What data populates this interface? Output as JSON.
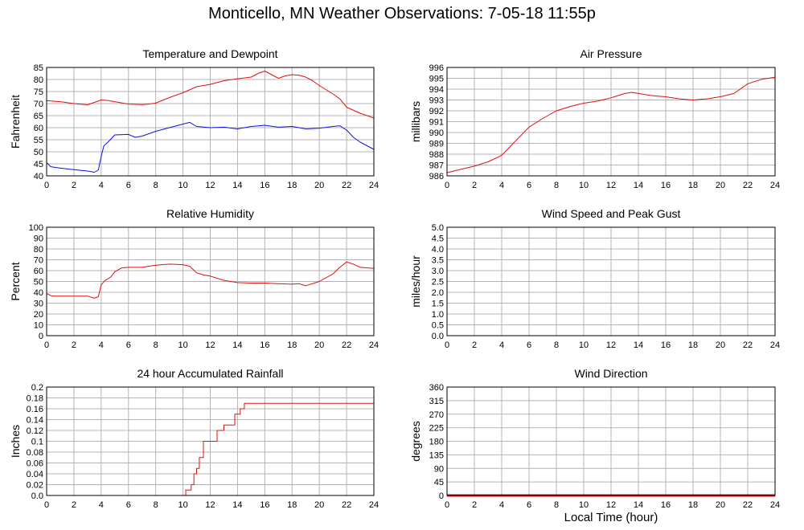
{
  "page": {
    "title": "Monticello, MN Weather Observations: 7-05-18 11:55p",
    "footer_xlabel": "Local Time (hour)"
  },
  "colors": {
    "red": "#e01010",
    "blue": "#1010e0",
    "grid": "#b4b4b4",
    "frame": "#000000"
  },
  "chart_data": [
    {
      "id": "temp",
      "type": "line",
      "title": "Temperature and Dewpoint",
      "ylabel": "Fahrenheit",
      "xlabel": "",
      "xlim": [
        0,
        24
      ],
      "ylim": [
        40,
        85
      ],
      "xticks": [
        "0",
        "2",
        "4",
        "6",
        "8",
        "10",
        "12",
        "14",
        "16",
        "18",
        "20",
        "22",
        "24"
      ],
      "yticks": [
        "40",
        "45",
        "50",
        "55",
        "60",
        "65",
        "70",
        "75",
        "80",
        "85"
      ],
      "grid": true,
      "series": [
        {
          "color": "#e01010",
          "x": [
            0,
            0.5,
            1,
            2,
            3,
            3.5,
            4,
            4.5,
            5,
            6,
            7,
            7.5,
            8,
            9,
            10,
            11,
            12,
            13,
            14,
            15,
            15.5,
            16,
            16.5,
            17,
            17.5,
            18,
            18.5,
            19,
            19.5,
            20,
            21,
            21.5,
            22,
            23,
            24
          ],
          "y": [
            71.2,
            71,
            70.8,
            70,
            69.5,
            70.5,
            71.5,
            71.3,
            70.8,
            69.8,
            69.6,
            69.8,
            70.2,
            72.5,
            74.5,
            77,
            78,
            79.5,
            80.3,
            81,
            82.5,
            83.5,
            82,
            80.5,
            81.5,
            82,
            81.8,
            81,
            79.5,
            77.5,
            74,
            72,
            68.5,
            66,
            64
          ]
        },
        {
          "color": "#1010e0",
          "x": [
            0,
            0.3,
            1,
            2,
            3,
            3.5,
            3.8,
            4,
            4.2,
            4.5,
            5,
            6,
            6.5,
            7,
            7.5,
            8,
            9,
            10,
            10.5,
            11,
            12,
            13,
            14,
            15,
            16,
            17,
            18,
            19,
            20,
            21,
            21.5,
            22,
            22.5,
            23,
            24
          ],
          "y": [
            45.5,
            43.8,
            43.2,
            42.6,
            42,
            41.5,
            42.5,
            48,
            52.5,
            54,
            57,
            57.2,
            56,
            56.5,
            57.5,
            58.5,
            60,
            61.5,
            62.2,
            60.5,
            60,
            60.2,
            59.5,
            60.5,
            61,
            60.2,
            60.5,
            59.5,
            59.8,
            60.5,
            60.8,
            59,
            56,
            54,
            51
          ]
        }
      ]
    },
    {
      "id": "pressure",
      "type": "line",
      "title": "Air Pressure",
      "ylabel": "millibars",
      "xlabel": "",
      "xlim": [
        0,
        24
      ],
      "ylim": [
        986,
        996
      ],
      "xticks": [
        "0",
        "2",
        "4",
        "6",
        "8",
        "10",
        "12",
        "14",
        "16",
        "18",
        "20",
        "22",
        "24"
      ],
      "yticks": [
        "986",
        "987",
        "988",
        "989",
        "990",
        "991",
        "992",
        "993",
        "994",
        "995",
        "996"
      ],
      "grid": true,
      "series": [
        {
          "color": "#e01010",
          "x": [
            0,
            1,
            2,
            3,
            4,
            5,
            6,
            7,
            8,
            9,
            10,
            11,
            12,
            13,
            13.5,
            14,
            15,
            16,
            17,
            18,
            19,
            20,
            21,
            22,
            23,
            24
          ],
          "y": [
            986.3,
            986.6,
            986.9,
            987.3,
            987.9,
            989.2,
            990.5,
            991.3,
            992,
            992.4,
            992.7,
            992.9,
            993.2,
            993.6,
            993.7,
            993.6,
            993.4,
            993.3,
            993.1,
            993,
            993.1,
            993.3,
            993.6,
            994.5,
            994.9,
            995.1
          ]
        }
      ]
    },
    {
      "id": "humidity",
      "type": "line",
      "title": "Relative Humidity",
      "ylabel": "Percent",
      "xlabel": "",
      "xlim": [
        0,
        24
      ],
      "ylim": [
        0,
        100
      ],
      "xticks": [
        "0",
        "2",
        "4",
        "6",
        "8",
        "10",
        "12",
        "14",
        "16",
        "18",
        "20",
        "22",
        "24"
      ],
      "yticks": [
        "0",
        "10",
        "20",
        "30",
        "40",
        "50",
        "60",
        "70",
        "80",
        "90",
        "100"
      ],
      "grid": true,
      "series": [
        {
          "color": "#e01010",
          "x": [
            0,
            0.3,
            0.5,
            1,
            2,
            3,
            3.5,
            3.8,
            4,
            4.3,
            4.7,
            5,
            5.5,
            6,
            7,
            8,
            9,
            10,
            10.5,
            11,
            11.5,
            12,
            13,
            14,
            15,
            16,
            17,
            18,
            18.5,
            19,
            20,
            21,
            21.5,
            22,
            22.5,
            23,
            24
          ],
          "y": [
            39,
            37,
            36.5,
            36.5,
            36.5,
            36.5,
            34.5,
            36,
            47,
            51,
            54,
            59,
            62.5,
            63,
            63,
            65,
            66,
            65.5,
            64,
            58,
            56,
            55,
            51,
            49,
            48.5,
            48.5,
            48,
            47.5,
            48,
            46,
            50,
            57,
            63,
            68,
            66,
            63,
            62
          ]
        }
      ]
    },
    {
      "id": "wind",
      "type": "line",
      "title": "Wind Speed and Peak Gust",
      "ylabel": "miles/hour",
      "xlabel": "",
      "xlim": [
        0,
        24
      ],
      "ylim": [
        0,
        5
      ],
      "xticks": [
        "0",
        "2",
        "4",
        "6",
        "8",
        "10",
        "12",
        "14",
        "16",
        "18",
        "20",
        "22",
        "24"
      ],
      "yticks": [
        "0.0",
        "0.5",
        "1.0",
        "1.5",
        "2.0",
        "2.5",
        "3.0",
        "3.5",
        "4.0",
        "4.5",
        "5.0"
      ],
      "grid": true,
      "series": [
        {
          "color": "#e01010",
          "x": [
            0,
            24
          ],
          "y": [
            0,
            0
          ]
        },
        {
          "color": "#1010e0",
          "x": [
            0,
            24
          ],
          "y": [
            0,
            0
          ]
        }
      ]
    },
    {
      "id": "rain",
      "type": "line",
      "step": true,
      "title": "24 hour Accumulated Rainfall",
      "ylabel": "Inches",
      "xlabel": "",
      "xlim": [
        0,
        24
      ],
      "ylim": [
        0,
        0.2
      ],
      "xticks": [
        "0",
        "2",
        "4",
        "6",
        "8",
        "10",
        "12",
        "14",
        "16",
        "18",
        "20",
        "22",
        "24"
      ],
      "yticks": [
        "0.0",
        "0.02",
        "0.04",
        "0.06",
        "0.08",
        "0.1",
        "0.12",
        "0.14",
        "0.16",
        "0.18",
        "0.2"
      ],
      "grid": true,
      "series": [
        {
          "color": "#e01010",
          "x": [
            0,
            10.2,
            10.6,
            10.8,
            11,
            11.2,
            11.5,
            11.8,
            12.2,
            12.5,
            13,
            13.2,
            13.8,
            14.2,
            14.5,
            24
          ],
          "y": [
            0,
            0.01,
            0.02,
            0.04,
            0.05,
            0.07,
            0.1,
            0.1,
            0.1,
            0.12,
            0.13,
            0.13,
            0.15,
            0.16,
            0.17,
            0.17
          ]
        }
      ]
    },
    {
      "id": "winddir",
      "type": "scatter",
      "title": "Wind Direction",
      "ylabel": "degrees",
      "xlabel": "",
      "xlim": [
        0,
        24
      ],
      "ylim": [
        0,
        360
      ],
      "xticks": [
        "0",
        "2",
        "4",
        "6",
        "8",
        "10",
        "12",
        "14",
        "16",
        "18",
        "20",
        "22",
        "24"
      ],
      "yticks": [
        "0",
        "45",
        "90",
        "135",
        "180",
        "225",
        "270",
        "315",
        "360"
      ],
      "grid": true,
      "series": [
        {
          "color": "#e01010",
          "x": [
            0,
            24
          ],
          "y": [
            0,
            0
          ],
          "thick": true
        }
      ]
    }
  ]
}
